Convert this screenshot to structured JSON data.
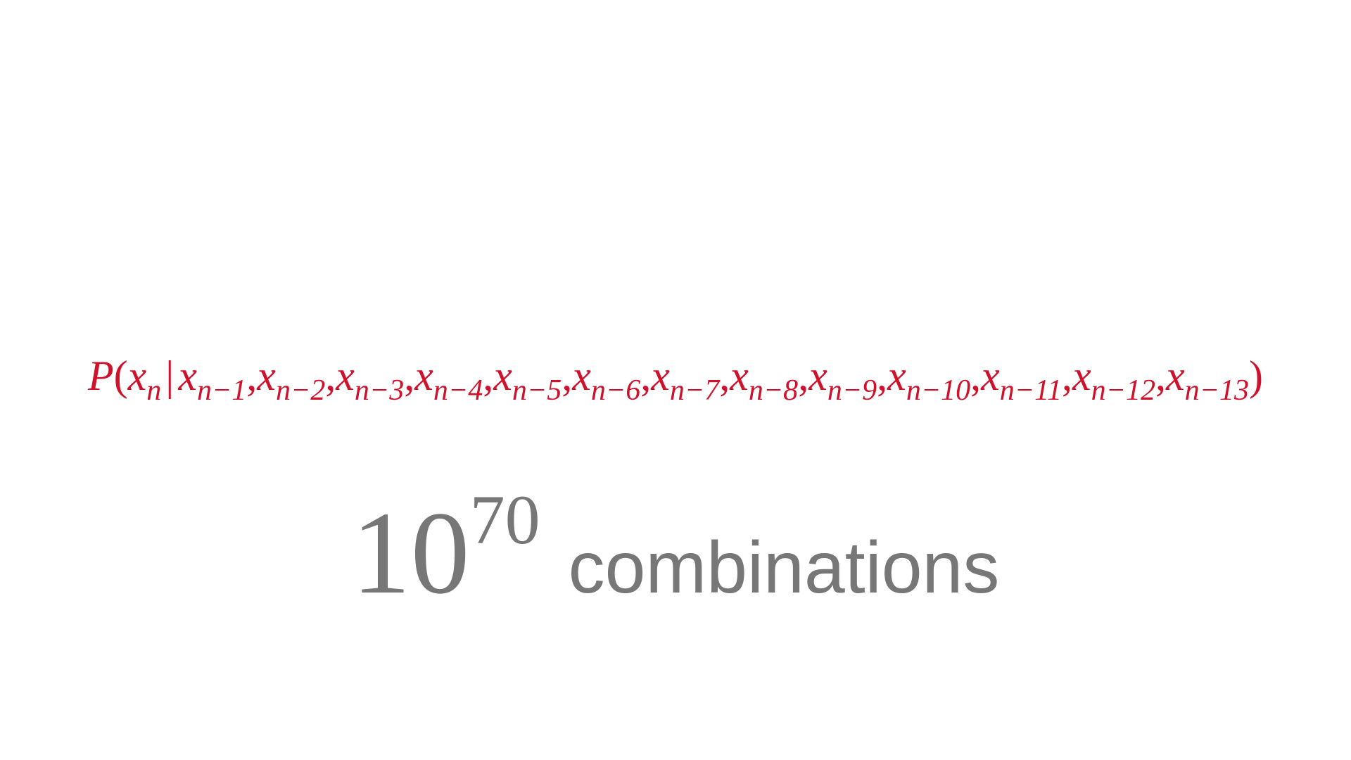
{
  "formula": {
    "function": "P",
    "open": "(",
    "close": ")",
    "given": "|",
    "separator": ",",
    "target": {
      "var": "x",
      "sub": "n"
    },
    "conditions": [
      {
        "var": "x",
        "sub": "n−1"
      },
      {
        "var": "x",
        "sub": "n−2"
      },
      {
        "var": "x",
        "sub": "n−3"
      },
      {
        "var": "x",
        "sub": "n−4"
      },
      {
        "var": "x",
        "sub": "n−5"
      },
      {
        "var": "x",
        "sub": "n−6"
      },
      {
        "var": "x",
        "sub": "n−7"
      },
      {
        "var": "x",
        "sub": "n−8"
      },
      {
        "var": "x",
        "sub": "n−9"
      },
      {
        "var": "x",
        "sub": "n−10"
      },
      {
        "var": "x",
        "sub": "n−11"
      },
      {
        "var": "x",
        "sub": "n−12"
      },
      {
        "var": "x",
        "sub": "n−13"
      }
    ]
  },
  "count": {
    "base": "10",
    "exponent": "70",
    "unit": "combinations"
  }
}
